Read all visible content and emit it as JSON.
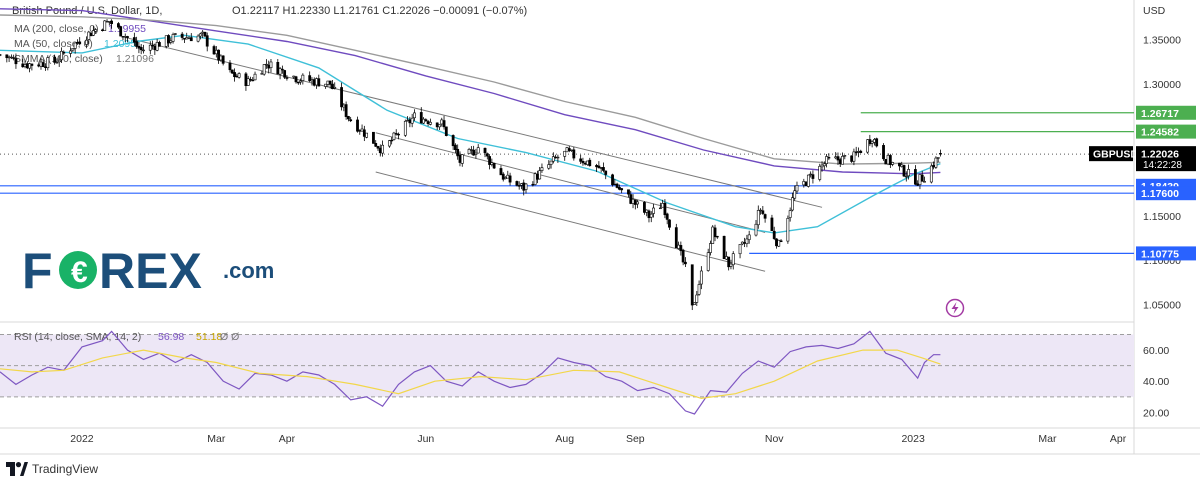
{
  "header": {
    "symbol": "British Pound / U.S. Dollar, 1D,",
    "ohlc": "O1.22117  H1.22330  L1.21761  C1.22026  −0.00091  (−0.07%)",
    "ma200": "MA (200, close, 0)",
    "ma200_value": "1.19955",
    "ma50": "MA (50, close, 0)",
    "ma50_value": "1.2095",
    "smma": "SMMA (100, close)",
    "smma_value": "1.21096",
    "rsi": "RSI (14, close, SMA, 14, 2)",
    "rsi_value": "56.98",
    "rsi_sma_value": "51.18",
    "rsi_extra": "Ø  Ø"
  },
  "brand": {
    "logo_left": "F",
    "logo_right": "REX",
    "logo_suffix": ".com",
    "footer": "TradingView"
  },
  "colors": {
    "candle": "#000000",
    "ma50": "#3fc0d8",
    "ma200": "#6f4bbf",
    "smma": "#9b9b9b",
    "rsi": "#7e57c2",
    "rsi_sma": "#f2d74a",
    "rsi_band": "#ede7f6",
    "support_line": "#2962ff",
    "resistance_line": "#4caf50",
    "channel": "#7a7a7a",
    "forex_blue": "#1c4e7a",
    "forex_green": "#19b267",
    "symbol_label": "#000000"
  },
  "chart_data": [
    {
      "type": "candlestick",
      "title": "British Pound / U.S. Dollar, 1D",
      "symbol_label": "GBPUSD",
      "last_price": "1.22026",
      "countdown": "14:22:28",
      "ylim": [
        1.03,
        1.395
      ],
      "y_ticks": [
        "1.35000",
        "1.30000",
        "1.15000",
        "1.10000",
        "1.05000"
      ],
      "y_unit": "USD",
      "x_ticks": [
        "2022",
        "Mar",
        "Apr",
        "Jun",
        "Aug",
        "Sep",
        "Nov",
        "2023",
        "Mar",
        "Apr"
      ],
      "x_tick_dates": [
        "2022-01-01",
        "2022-03-01",
        "2022-04-01",
        "2022-06-01",
        "2022-08-01",
        "2022-09-01",
        "2022-11-01",
        "2023-01-01",
        "2023-03-01",
        "2023-04-01"
      ],
      "xlim": [
        "2021-11-26",
        "2023-04-08"
      ],
      "horizontal_levels": [
        {
          "value": 1.26717,
          "label": "1.26717",
          "color": "#4caf50",
          "start": "2022-12-09"
        },
        {
          "value": 1.24582,
          "label": "1.24582",
          "color": "#4caf50",
          "start": "2022-12-09"
        },
        {
          "value": 1.18439,
          "label": "1.18439",
          "color": "#2962ff",
          "start": "2021-11-26"
        },
        {
          "value": 1.176,
          "label": "1.17600",
          "color": "#2962ff",
          "start": "2021-11-26"
        },
        {
          "value": 1.10775,
          "label": "1.10775",
          "color": "#2962ff",
          "start": "2022-10-21"
        }
      ],
      "last_price_line": {
        "value": 1.22026,
        "style": "dotted"
      },
      "channel_lines": [
        {
          "from": [
            "2022-05-10",
            1.2445
          ],
          "to": [
            "2022-10-28",
            1.1315
          ]
        },
        {
          "from": [
            "2022-05-10",
            1.2
          ],
          "to": [
            "2022-10-28",
            1.0875
          ]
        },
        {
          "from": [
            "2022-01-20",
            1.3525
          ],
          "to": [
            "2022-11-22",
            1.16
          ]
        }
      ],
      "series": [
        {
          "name": "MA (200, close, 0)",
          "color": "#6f4bbf",
          "points": [
            [
              "2021-11-26",
              1.385
            ],
            [
              "2022-01-01",
              1.383
            ],
            [
              "2022-02-01",
              1.371
            ],
            [
              "2022-03-01",
              1.36
            ],
            [
              "2022-04-01",
              1.348
            ],
            [
              "2022-05-01",
              1.332
            ],
            [
              "2022-06-01",
              1.309
            ],
            [
              "2022-07-01",
              1.289
            ],
            [
              "2022-08-01",
              1.265
            ],
            [
              "2022-09-01",
              1.248
            ],
            [
              "2022-10-01",
              1.225
            ],
            [
              "2022-11-01",
              1.207
            ],
            [
              "2022-12-01",
              1.2
            ],
            [
              "2023-01-01",
              1.198
            ],
            [
              "2023-01-13",
              1.1996
            ]
          ]
        },
        {
          "name": "MA (50, close, 0)",
          "color": "#3fc0d8",
          "points": [
            [
              "2021-11-26",
              1.338
            ],
            [
              "2022-01-01",
              1.335
            ],
            [
              "2022-01-25",
              1.348
            ],
            [
              "2022-02-15",
              1.355
            ],
            [
              "2022-03-15",
              1.345
            ],
            [
              "2022-04-15",
              1.318
            ],
            [
              "2022-05-15",
              1.27
            ],
            [
              "2022-06-15",
              1.238
            ],
            [
              "2022-07-15",
              1.222
            ],
            [
              "2022-08-15",
              1.201
            ],
            [
              "2022-09-15",
              1.165
            ],
            [
              "2022-10-15",
              1.138
            ],
            [
              "2022-11-01",
              1.131
            ],
            [
              "2022-11-20",
              1.138
            ],
            [
              "2022-12-15",
              1.174
            ],
            [
              "2023-01-01",
              1.197
            ],
            [
              "2023-01-13",
              1.2095
            ]
          ]
        },
        {
          "name": "SMMA (100, close)",
          "color": "#9b9b9b",
          "points": [
            [
              "2021-11-26",
              1.378
            ],
            [
              "2022-01-01",
              1.376
            ],
            [
              "2022-02-01",
              1.372
            ],
            [
              "2022-03-01",
              1.366
            ],
            [
              "2022-04-01",
              1.355
            ],
            [
              "2022-05-01",
              1.338
            ],
            [
              "2022-06-01",
              1.32
            ],
            [
              "2022-07-01",
              1.302
            ],
            [
              "2022-08-01",
              1.28
            ],
            [
              "2022-09-01",
              1.262
            ],
            [
              "2022-10-01",
              1.238
            ],
            [
              "2022-11-01",
              1.215
            ],
            [
              "2022-12-01",
              1.209
            ],
            [
              "2023-01-01",
              1.21
            ],
            [
              "2023-01-13",
              1.211
            ]
          ]
        }
      ],
      "close_path": [
        [
          "2021-11-26",
          1.333
        ],
        [
          "2021-12-08",
          1.322
        ],
        [
          "2021-12-20",
          1.325
        ],
        [
          "2022-01-01",
          1.352
        ],
        [
          "2022-01-13",
          1.371
        ],
        [
          "2022-01-27",
          1.338
        ],
        [
          "2022-02-10",
          1.352
        ],
        [
          "2022-02-23",
          1.354
        ],
        [
          "2022-03-07",
          1.312
        ],
        [
          "2022-03-15",
          1.302
        ],
        [
          "2022-03-23",
          1.323
        ],
        [
          "2022-04-06",
          1.306
        ],
        [
          "2022-04-20",
          1.3
        ],
        [
          "2022-04-28",
          1.262
        ],
        [
          "2022-05-13",
          1.225
        ],
        [
          "2022-05-27",
          1.263
        ],
        [
          "2022-06-08",
          1.255
        ],
        [
          "2022-06-16",
          1.212
        ],
        [
          "2022-06-24",
          1.228
        ],
        [
          "2022-07-06",
          1.192
        ],
        [
          "2022-07-14",
          1.182
        ],
        [
          "2022-07-29",
          1.217
        ],
        [
          "2022-08-02",
          1.222
        ],
        [
          "2022-08-16",
          1.205
        ],
        [
          "2022-08-26",
          1.178
        ],
        [
          "2022-09-07",
          1.15
        ],
        [
          "2022-09-13",
          1.165
        ],
        [
          "2022-09-23",
          1.09
        ],
        [
          "2022-09-26",
          1.045
        ],
        [
          "2022-10-05",
          1.133
        ],
        [
          "2022-10-12",
          1.095
        ],
        [
          "2022-10-21",
          1.126
        ],
        [
          "2022-10-26",
          1.158
        ],
        [
          "2022-11-03",
          1.117
        ],
        [
          "2022-11-10",
          1.177
        ],
        [
          "2022-11-24",
          1.212
        ],
        [
          "2022-12-06",
          1.217
        ],
        [
          "2022-12-14",
          1.24
        ],
        [
          "2022-12-20",
          1.215
        ],
        [
          "2023-01-03",
          1.19
        ],
        [
          "2023-01-06",
          1.195
        ],
        [
          "2023-01-13",
          1.2203
        ]
      ]
    },
    {
      "type": "line",
      "title": "RSI (14, close, SMA, 14, 2)",
      "ylim": [
        10,
        78
      ],
      "y_ticks": [
        "60.00",
        "40.00",
        "20.00"
      ],
      "bands": [
        70,
        50,
        30
      ],
      "series": [
        {
          "name": "RSI",
          "color": "#7e57c2",
          "points": [
            [
              "2021-11-26",
              46
            ],
            [
              "2021-12-03",
              38
            ],
            [
              "2021-12-10",
              44
            ],
            [
              "2021-12-17",
              49
            ],
            [
              "2021-12-24",
              47
            ],
            [
              "2022-01-01",
              62
            ],
            [
              "2022-01-10",
              66
            ],
            [
              "2022-01-14",
              72
            ],
            [
              "2022-01-21",
              60
            ],
            [
              "2022-01-28",
              54
            ],
            [
              "2022-02-04",
              58
            ],
            [
              "2022-02-11",
              52
            ],
            [
              "2022-02-18",
              57
            ],
            [
              "2022-02-25",
              52
            ],
            [
              "2022-03-04",
              40
            ],
            [
              "2022-03-11",
              35
            ],
            [
              "2022-03-18",
              45
            ],
            [
              "2022-03-25",
              44
            ],
            [
              "2022-04-01",
              40
            ],
            [
              "2022-04-08",
              46
            ],
            [
              "2022-04-15",
              44
            ],
            [
              "2022-04-22",
              38
            ],
            [
              "2022-04-29",
              28
            ],
            [
              "2022-05-06",
              30
            ],
            [
              "2022-05-13",
              24
            ],
            [
              "2022-05-20",
              38
            ],
            [
              "2022-05-27",
              46
            ],
            [
              "2022-06-03",
              50
            ],
            [
              "2022-06-10",
              40
            ],
            [
              "2022-06-17",
              37
            ],
            [
              "2022-06-24",
              46
            ],
            [
              "2022-07-01",
              40
            ],
            [
              "2022-07-08",
              36
            ],
            [
              "2022-07-15",
              38
            ],
            [
              "2022-07-22",
              45
            ],
            [
              "2022-07-29",
              55
            ],
            [
              "2022-08-05",
              52
            ],
            [
              "2022-08-12",
              50
            ],
            [
              "2022-08-19",
              43
            ],
            [
              "2022-08-26",
              40
            ],
            [
              "2022-09-02",
              34
            ],
            [
              "2022-09-09",
              36
            ],
            [
              "2022-09-16",
              32
            ],
            [
              "2022-09-23",
              21
            ],
            [
              "2022-09-27",
              19
            ],
            [
              "2022-10-04",
              34
            ],
            [
              "2022-10-11",
              33
            ],
            [
              "2022-10-18",
              45
            ],
            [
              "2022-10-25",
              53
            ],
            [
              "2022-11-01",
              49
            ],
            [
              "2022-11-08",
              59
            ],
            [
              "2022-11-15",
              62
            ],
            [
              "2022-11-22",
              63
            ],
            [
              "2022-11-29",
              61
            ],
            [
              "2022-12-06",
              64
            ],
            [
              "2022-12-13",
              72
            ],
            [
              "2022-12-20",
              58
            ],
            [
              "2022-12-27",
              54
            ],
            [
              "2023-01-03",
              42
            ],
            [
              "2023-01-06",
              52
            ],
            [
              "2023-01-10",
              57
            ],
            [
              "2023-01-13",
              57
            ]
          ]
        },
        {
          "name": "RSI SMA",
          "color": "#f2d74a",
          "points": [
            [
              "2021-11-26",
              48
            ],
            [
              "2021-12-10",
              46
            ],
            [
              "2021-12-24",
              47
            ],
            [
              "2022-01-10",
              55
            ],
            [
              "2022-01-28",
              60
            ],
            [
              "2022-02-15",
              55
            ],
            [
              "2022-03-01",
              52
            ],
            [
              "2022-03-20",
              45
            ],
            [
              "2022-04-10",
              43
            ],
            [
              "2022-05-01",
              38
            ],
            [
              "2022-05-20",
              32
            ],
            [
              "2022-06-05",
              40
            ],
            [
              "2022-06-25",
              43
            ],
            [
              "2022-07-15",
              41
            ],
            [
              "2022-08-05",
              47
            ],
            [
              "2022-08-25",
              46
            ],
            [
              "2022-09-15",
              36
            ],
            [
              "2022-09-30",
              29
            ],
            [
              "2022-10-15",
              32
            ],
            [
              "2022-11-01",
              40
            ],
            [
              "2022-11-20",
              53
            ],
            [
              "2022-12-10",
              60
            ],
            [
              "2022-12-25",
              60
            ],
            [
              "2023-01-05",
              55
            ],
            [
              "2023-01-13",
              51
            ]
          ]
        }
      ]
    }
  ]
}
